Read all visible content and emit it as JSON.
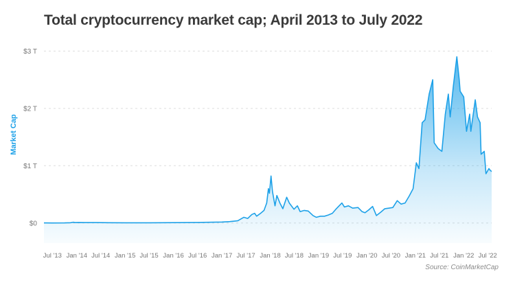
{
  "page": {
    "title": "Total cryptocurrency market cap; April 2013 to July 2022",
    "source": "Source: CoinMarketCap"
  },
  "chart_data": {
    "type": "area",
    "title": "Total cryptocurrency market cap; April 2013 to July 2022",
    "xlabel": "",
    "ylabel": "Market Cap",
    "y_ticks": [
      "$0",
      "$1 T",
      "$2 T",
      "$3 T"
    ],
    "y_tick_values": [
      0,
      1,
      2,
      3
    ],
    "ylim": [
      -0.35,
      3.1
    ],
    "y_unit": "trillion USD",
    "x_ticks": [
      "Jul '13",
      "Jan '14",
      "Jul '14",
      "Jan '15",
      "Jul '15",
      "Jan '16",
      "Jul '16",
      "Jan '17",
      "Jul '17",
      "Jan '18",
      "Jul '18",
      "Jan '19",
      "Jul '19",
      "Jan '20",
      "Jul '20",
      "Jan '21",
      "Jul '21",
      "Jan '22",
      "Jul '22"
    ],
    "x_tick_dates": [
      "2013-07-01",
      "2014-01-01",
      "2014-07-01",
      "2015-01-01",
      "2015-07-01",
      "2016-01-01",
      "2016-07-01",
      "2017-01-01",
      "2017-07-01",
      "2018-01-01",
      "2018-07-01",
      "2019-01-01",
      "2019-07-01",
      "2020-01-01",
      "2020-07-01",
      "2021-01-01",
      "2021-07-01",
      "2022-01-01",
      "2022-07-01"
    ],
    "xlim": [
      "2013-04-28",
      "2022-07-31"
    ],
    "grid": "horizontal dashed",
    "color": "#1da1e8",
    "series": [
      {
        "points": [
          [
            "2013-04-28",
            0.0016
          ],
          [
            "2013-07-01",
            0.0012
          ],
          [
            "2013-10-01",
            0.002
          ],
          [
            "2013-11-15",
            0.006
          ],
          [
            "2013-12-04",
            0.014
          ],
          [
            "2013-12-20",
            0.008
          ],
          [
            "2014-01-15",
            0.011
          ],
          [
            "2014-03-01",
            0.008
          ],
          [
            "2014-06-01",
            0.008
          ],
          [
            "2014-09-01",
            0.006
          ],
          [
            "2015-01-01",
            0.004
          ],
          [
            "2015-07-01",
            0.004
          ],
          [
            "2016-01-01",
            0.007
          ],
          [
            "2016-06-15",
            0.011
          ],
          [
            "2016-07-01",
            0.01
          ],
          [
            "2017-01-01",
            0.018
          ],
          [
            "2017-03-01",
            0.025
          ],
          [
            "2017-05-01",
            0.04
          ],
          [
            "2017-06-15",
            0.1
          ],
          [
            "2017-07-15",
            0.08
          ],
          [
            "2017-08-15",
            0.15
          ],
          [
            "2017-09-05",
            0.17
          ],
          [
            "2017-09-20",
            0.12
          ],
          [
            "2017-10-20",
            0.17
          ],
          [
            "2017-11-15",
            0.22
          ],
          [
            "2017-12-05",
            0.35
          ],
          [
            "2017-12-18",
            0.6
          ],
          [
            "2017-12-26",
            0.52
          ],
          [
            "2018-01-07",
            0.82
          ],
          [
            "2018-01-18",
            0.55
          ],
          [
            "2018-02-06",
            0.3
          ],
          [
            "2018-02-20",
            0.48
          ],
          [
            "2018-03-15",
            0.35
          ],
          [
            "2018-04-06",
            0.25
          ],
          [
            "2018-05-05",
            0.45
          ],
          [
            "2018-05-25",
            0.35
          ],
          [
            "2018-06-29",
            0.24
          ],
          [
            "2018-07-25",
            0.3
          ],
          [
            "2018-08-15",
            0.2
          ],
          [
            "2018-09-15",
            0.22
          ],
          [
            "2018-10-15",
            0.21
          ],
          [
            "2018-11-20",
            0.13
          ],
          [
            "2018-12-15",
            0.1
          ],
          [
            "2019-01-15",
            0.12
          ],
          [
            "2019-02-15",
            0.12
          ],
          [
            "2019-03-15",
            0.14
          ],
          [
            "2019-04-15",
            0.17
          ],
          [
            "2019-05-15",
            0.25
          ],
          [
            "2019-06-26",
            0.35
          ],
          [
            "2019-07-15",
            0.28
          ],
          [
            "2019-08-15",
            0.3
          ],
          [
            "2019-09-15",
            0.26
          ],
          [
            "2019-10-26",
            0.27
          ],
          [
            "2019-11-25",
            0.2
          ],
          [
            "2019-12-18",
            0.18
          ],
          [
            "2020-01-15",
            0.23
          ],
          [
            "2020-02-13",
            0.29
          ],
          [
            "2020-03-13",
            0.13
          ],
          [
            "2020-04-15",
            0.19
          ],
          [
            "2020-05-15",
            0.25
          ],
          [
            "2020-06-15",
            0.26
          ],
          [
            "2020-07-15",
            0.27
          ],
          [
            "2020-08-17",
            0.39
          ],
          [
            "2020-09-15",
            0.33
          ],
          [
            "2020-10-15",
            0.35
          ],
          [
            "2020-11-15",
            0.47
          ],
          [
            "2020-12-15",
            0.6
          ],
          [
            "2021-01-08",
            1.05
          ],
          [
            "2021-01-28",
            0.95
          ],
          [
            "2021-02-21",
            1.75
          ],
          [
            "2021-03-15",
            1.8
          ],
          [
            "2021-04-15",
            2.25
          ],
          [
            "2021-05-12",
            2.5
          ],
          [
            "2021-05-23",
            1.4
          ],
          [
            "2021-06-22",
            1.3
          ],
          [
            "2021-07-20",
            1.25
          ],
          [
            "2021-08-15",
            1.9
          ],
          [
            "2021-09-07",
            2.25
          ],
          [
            "2021-09-21",
            1.85
          ],
          [
            "2021-10-15",
            2.4
          ],
          [
            "2021-11-10",
            2.9
          ],
          [
            "2021-11-28",
            2.5
          ],
          [
            "2021-12-05",
            2.3
          ],
          [
            "2022-01-01",
            2.2
          ],
          [
            "2022-01-22",
            1.6
          ],
          [
            "2022-02-15",
            1.9
          ],
          [
            "2022-02-24",
            1.6
          ],
          [
            "2022-03-29",
            2.15
          ],
          [
            "2022-04-15",
            1.85
          ],
          [
            "2022-05-05",
            1.75
          ],
          [
            "2022-05-12",
            1.2
          ],
          [
            "2022-06-05",
            1.25
          ],
          [
            "2022-06-18",
            0.86
          ],
          [
            "2022-07-10",
            0.95
          ],
          [
            "2022-07-20",
            0.92
          ],
          [
            "2022-07-31",
            0.9
          ]
        ]
      }
    ]
  }
}
